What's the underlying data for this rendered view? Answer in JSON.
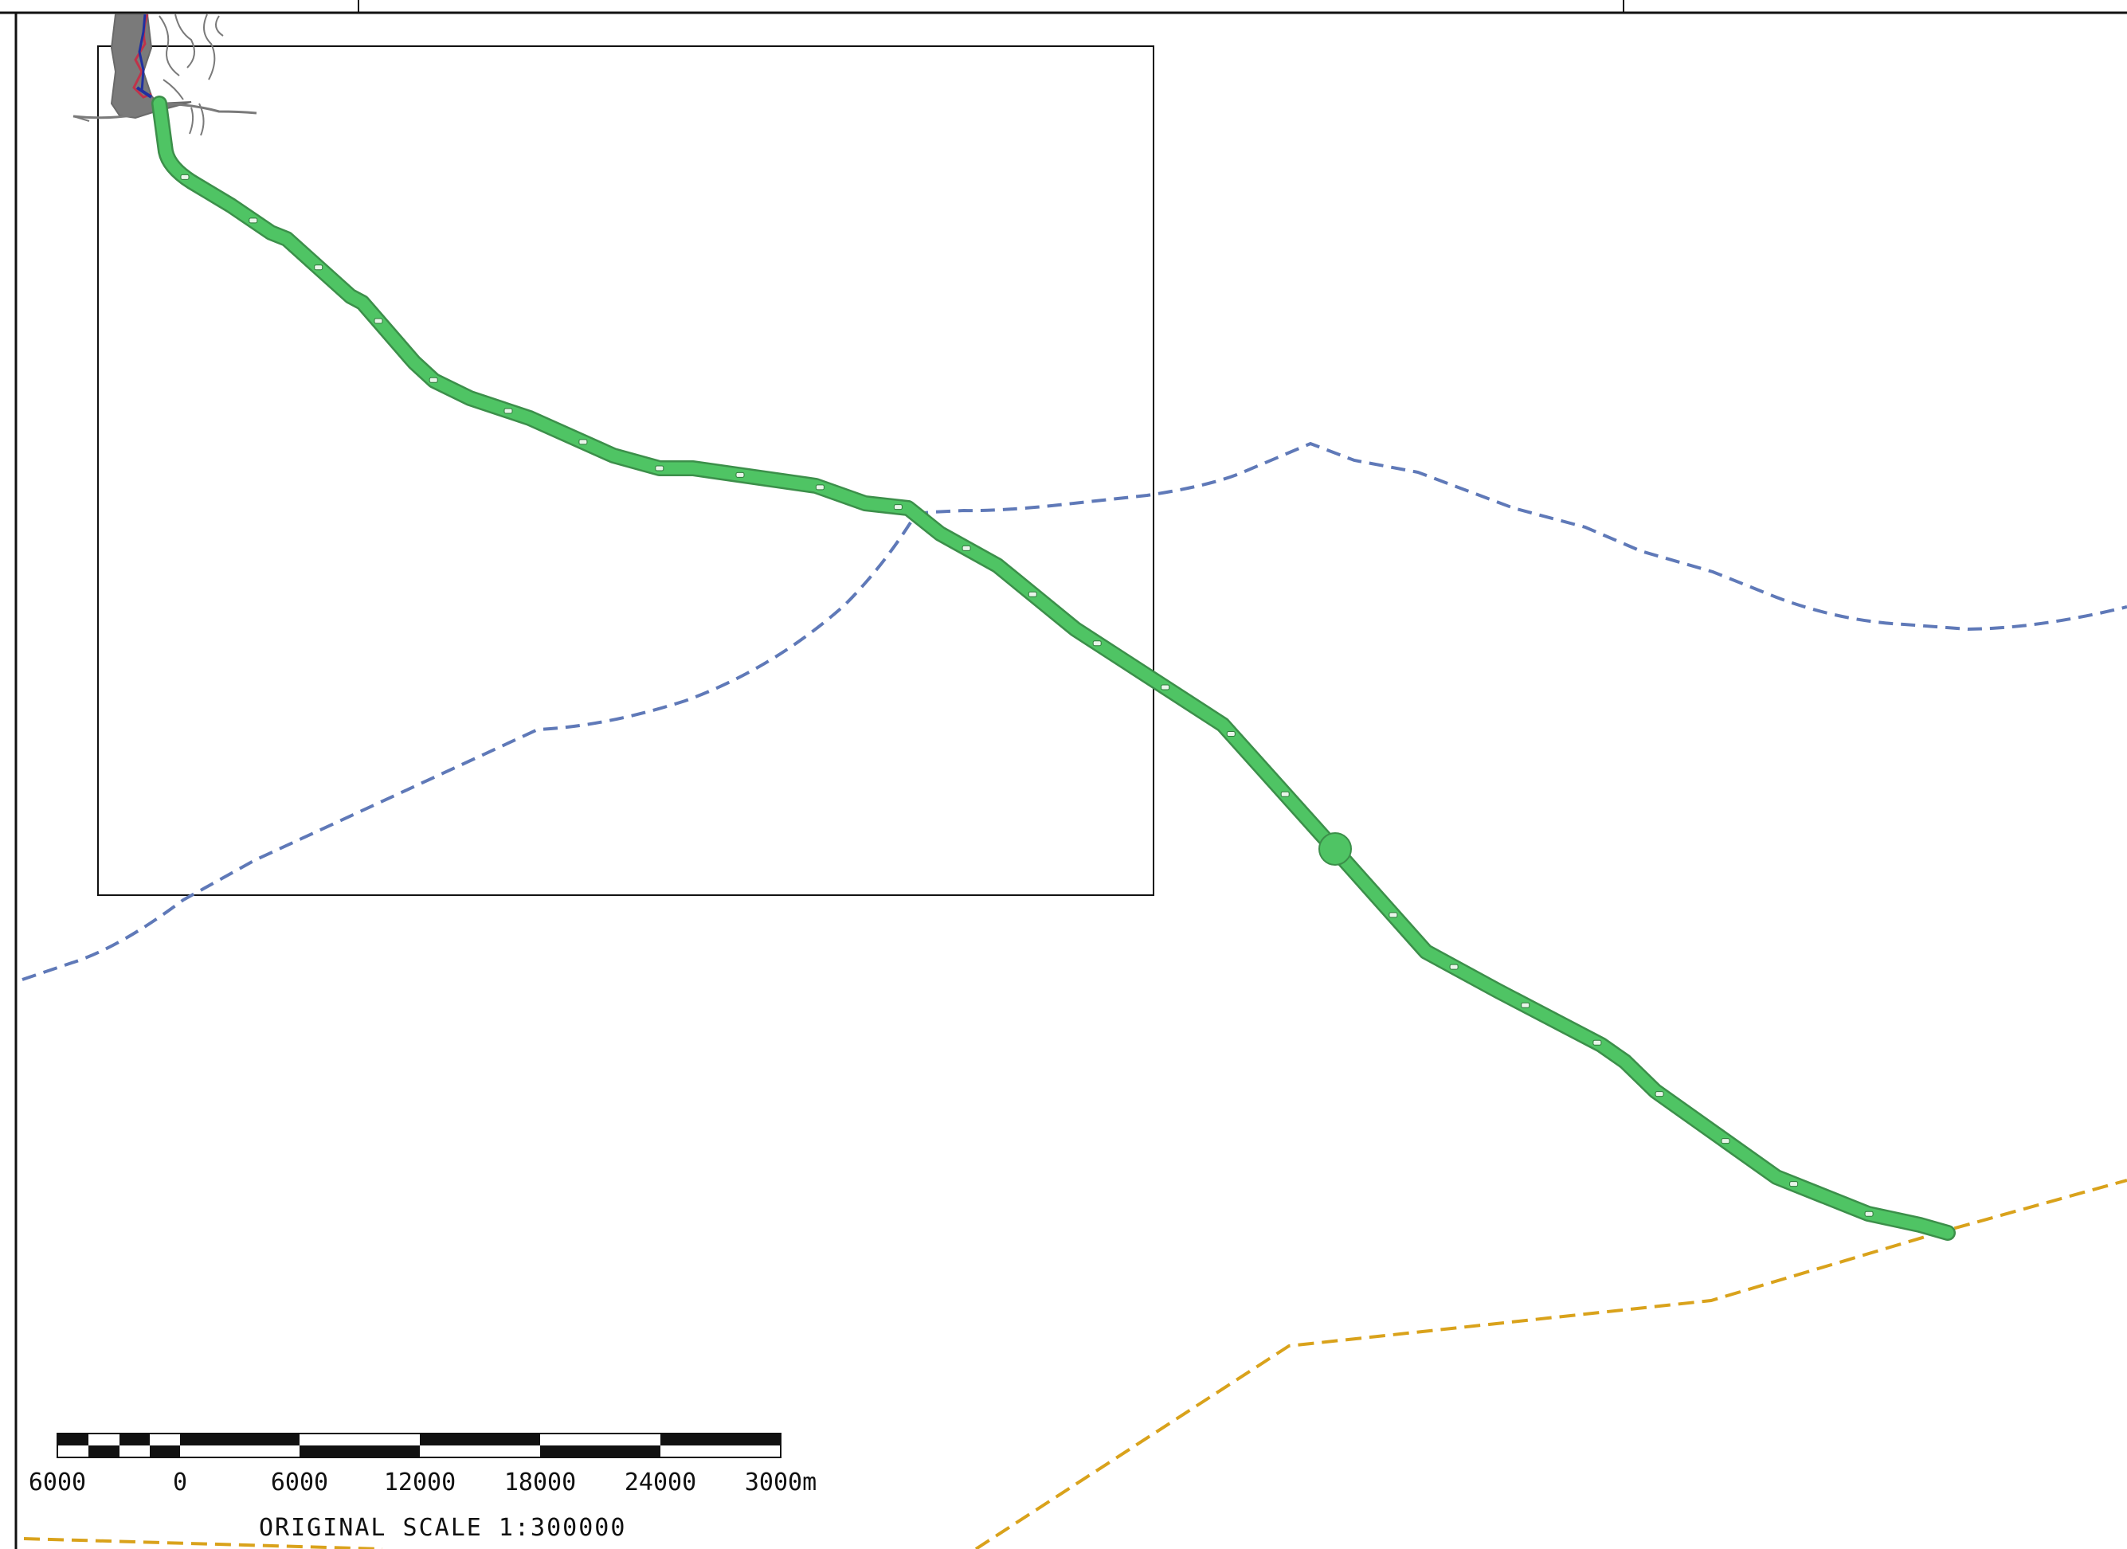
{
  "map": {
    "colors": {
      "background": "#ffffff",
      "frame": "#111111",
      "route_fill": "#4fc464",
      "route_edge": "#3c8f4a",
      "route_marker": "#e8f5e9",
      "boundary_blue": "#5f79b8",
      "boundary_gold": "#d9a21b",
      "coastline": "#7a7a7a",
      "harbor_red": "#c0334a",
      "harbor_blue": "#2030a0"
    },
    "icons": {
      "waypoint": "filled-circle-marker"
    },
    "route": {
      "name": "",
      "markers_count": 26
    },
    "scale_bar": {
      "ticks": [
        "6000",
        "0",
        "6000",
        "12000",
        "18000",
        "24000",
        "3000m"
      ],
      "caption": "ORIGINAL SCALE 1:300000"
    }
  }
}
